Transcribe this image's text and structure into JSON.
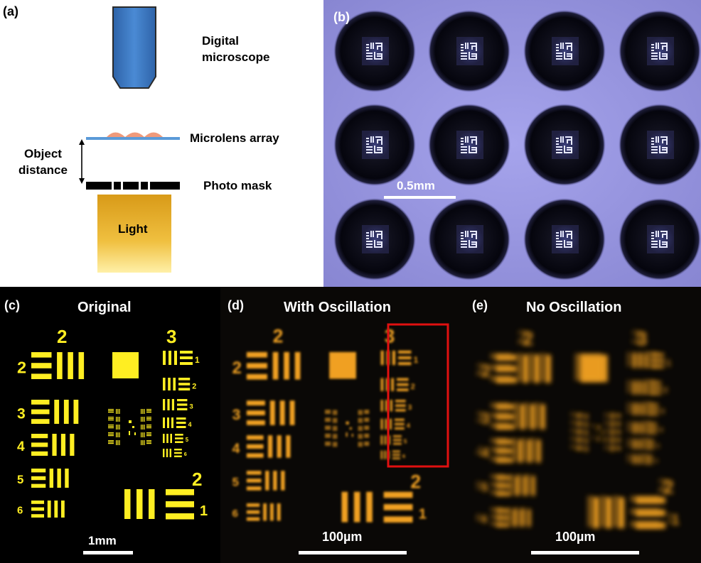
{
  "panel_a": {
    "label": "(a)",
    "microscope": "Digital\nmicroscope",
    "lens": "Microlens array",
    "object_distance": "Object\ndistance",
    "mask": "Photo mask",
    "light": "Light"
  },
  "panel_b": {
    "label": "(b)",
    "scale": "0.5mm"
  },
  "panel_c": {
    "label": "(c)",
    "title": "Original",
    "scale": "1mm"
  },
  "panel_d": {
    "label": "(d)",
    "title": "With Oscillation",
    "scale": "100µm"
  },
  "panel_e": {
    "label": "(e)",
    "title": "No Oscillation",
    "scale": "100µm"
  },
  "usaf_numbers": {
    "left": [
      "2",
      "3",
      "4",
      "5",
      "6"
    ],
    "group_left": "2",
    "group_right": "3",
    "right": [
      "1",
      "2",
      "3",
      "4",
      "5",
      "6"
    ],
    "bottom_group": "2",
    "bottom_el": "1"
  },
  "colors": {
    "target_yellow": "#ffee22",
    "glow": "#f0a020",
    "highlight_box": "#e01010",
    "lens": "#3a78c4"
  }
}
